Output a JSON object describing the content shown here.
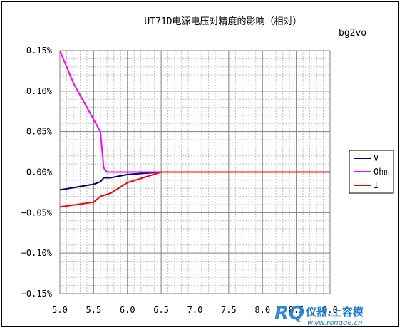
{
  "chart_data": {
    "type": "line",
    "title": "UT71D电源电压对精度的影响（相对）",
    "subtitle": "bg2vo",
    "xlabel": "",
    "ylabel": "",
    "xlim": [
      5.0,
      9.0
    ],
    "ylim": [
      -0.15,
      0.15
    ],
    "x_ticks": [
      "5.0",
      "5.5",
      "6.0",
      "6.5",
      "7.0",
      "7.5",
      "8.0",
      "8.5",
      "9.0"
    ],
    "y_ticks": [
      "0.15%",
      "0.10%",
      "0.05%",
      "0.00%",
      "−0.05%",
      "−0.10%",
      "−0.15%"
    ],
    "grid": true,
    "legend_position": "right",
    "series": [
      {
        "name": "V",
        "color": "#000080",
        "points": [
          [
            5.0,
            -0.022
          ],
          [
            5.5,
            -0.015
          ],
          [
            5.6,
            -0.012
          ],
          [
            5.65,
            -0.007
          ],
          [
            5.75,
            -0.007
          ],
          [
            6.0,
            -0.003
          ],
          [
            6.5,
            0.0
          ],
          [
            9.0,
            0.0
          ]
        ]
      },
      {
        "name": "Ohm",
        "color": "#ff00ff",
        "points": [
          [
            5.0,
            0.15
          ],
          [
            5.2,
            0.11
          ],
          [
            5.4,
            0.08
          ],
          [
            5.6,
            0.05
          ],
          [
            5.65,
            0.005
          ],
          [
            5.7,
            0.0
          ],
          [
            9.0,
            0.0
          ]
        ]
      },
      {
        "name": "I",
        "color": "#ff0000",
        "points": [
          [
            5.0,
            -0.043
          ],
          [
            5.5,
            -0.037
          ],
          [
            5.6,
            -0.03
          ],
          [
            5.75,
            -0.026
          ],
          [
            6.0,
            -0.013
          ],
          [
            6.5,
            0.0
          ],
          [
            9.0,
            0.0
          ]
        ]
      }
    ]
  },
  "watermark": {
    "logo_letters": "RQ",
    "text": "仪器.上容模",
    "url": "www.rongqe.cn",
    "color": "#1a7fd0"
  }
}
